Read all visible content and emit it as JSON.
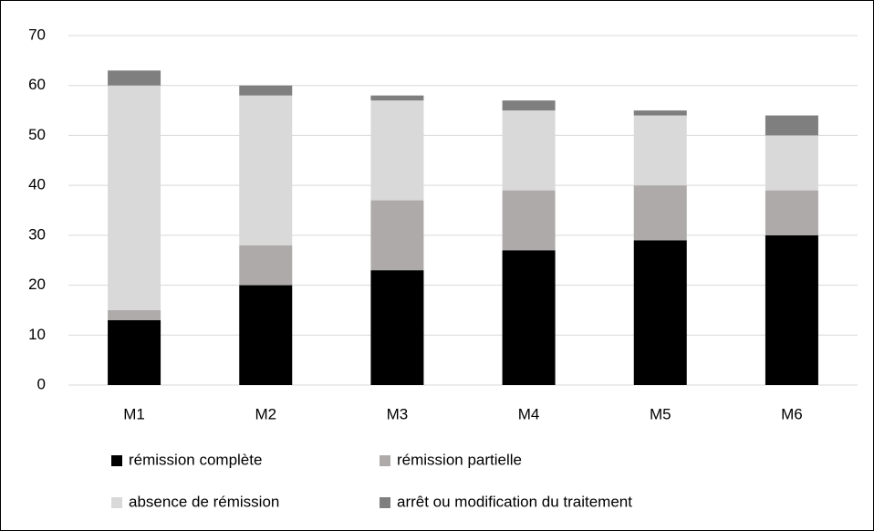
{
  "chart_data": {
    "type": "bar",
    "stacked": true,
    "categories": [
      "M1",
      "M2",
      "M3",
      "M4",
      "M5",
      "M6"
    ],
    "series": [
      {
        "name": "rémission complète",
        "color": "#000000",
        "values": [
          13,
          20,
          23,
          27,
          29,
          30
        ]
      },
      {
        "name": "rémission partielle",
        "color": "#aeaaaa",
        "values": [
          2,
          8,
          14,
          12,
          11,
          9
        ]
      },
      {
        "name": "absence de rémission",
        "color": "#d9d9d9",
        "values": [
          45,
          30,
          20,
          16,
          14,
          11
        ]
      },
      {
        "name": "arrêt ou modification du traitement",
        "color": "#7f7f7f",
        "values": [
          3,
          2,
          1,
          2,
          1,
          4
        ]
      }
    ],
    "ylim": [
      0,
      70
    ],
    "yticks": [
      0,
      10,
      20,
      30,
      40,
      50,
      60,
      70
    ],
    "grid": true,
    "legend": "bottom"
  }
}
